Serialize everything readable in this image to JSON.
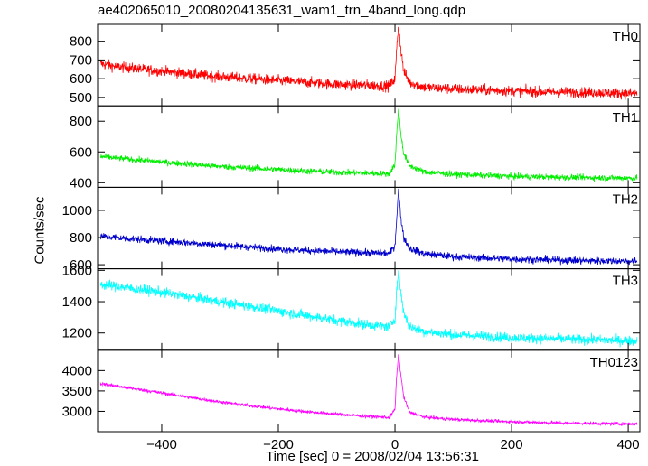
{
  "chart_data": {
    "type": "line",
    "title": "ae402065010_20080204135631_wam1_trn_4band_long.qdp",
    "xlabel": "Time [sec] 0 = 2008/02/04 13:56:31",
    "ylabel": "Counts/sec",
    "xlim": [
      -510,
      420
    ],
    "x_ticks": [
      -400,
      -200,
      0,
      200,
      400
    ],
    "grid": false,
    "panels": [
      {
        "name": "TH0",
        "color": "#ff0000",
        "ylim": [
          455,
          890
        ],
        "y_ticks": [
          500,
          600,
          700,
          800
        ],
        "points": [
          [
            -505,
            680
          ],
          [
            -480,
            665
          ],
          [
            -450,
            655
          ],
          [
            -400,
            640
          ],
          [
            -350,
            625
          ],
          [
            -300,
            610
          ],
          [
            -250,
            600
          ],
          [
            -200,
            590
          ],
          [
            -150,
            580
          ],
          [
            -100,
            570
          ],
          [
            -50,
            565
          ],
          [
            -10,
            560
          ],
          [
            0,
            600
          ],
          [
            3,
            760
          ],
          [
            6,
            890
          ],
          [
            10,
            760
          ],
          [
            15,
            640
          ],
          [
            25,
            580
          ],
          [
            50,
            555
          ],
          [
            100,
            545
          ],
          [
            150,
            540
          ],
          [
            200,
            535
          ],
          [
            250,
            530
          ],
          [
            300,
            528
          ],
          [
            350,
            525
          ],
          [
            415,
            520
          ]
        ],
        "noise": 40
      },
      {
        "name": "TH1",
        "color": "#00ee00",
        "ylim": [
          370,
          900
        ],
        "y_ticks": [
          400,
          600,
          800
        ],
        "points": [
          [
            -505,
            570
          ],
          [
            -450,
            550
          ],
          [
            -400,
            535
          ],
          [
            -350,
            520
          ],
          [
            -300,
            505
          ],
          [
            -250,
            495
          ],
          [
            -200,
            485
          ],
          [
            -150,
            475
          ],
          [
            -100,
            468
          ],
          [
            -50,
            462
          ],
          [
            -10,
            458
          ],
          [
            0,
            520
          ],
          [
            3,
            720
          ],
          [
            6,
            880
          ],
          [
            10,
            720
          ],
          [
            15,
            590
          ],
          [
            25,
            510
          ],
          [
            50,
            470
          ],
          [
            100,
            455
          ],
          [
            150,
            448
          ],
          [
            200,
            442
          ],
          [
            250,
            438
          ],
          [
            300,
            435
          ],
          [
            350,
            432
          ],
          [
            415,
            430
          ]
        ],
        "noise": 28
      },
      {
        "name": "TH2",
        "color": "#0000cc",
        "ylim": [
          570,
          1170
        ],
        "y_ticks": [
          600,
          800,
          1000
        ],
        "points": [
          [
            -505,
            810
          ],
          [
            -450,
            790
          ],
          [
            -400,
            775
          ],
          [
            -350,
            760
          ],
          [
            -300,
            745
          ],
          [
            -250,
            730
          ],
          [
            -200,
            715
          ],
          [
            -150,
            705
          ],
          [
            -100,
            695
          ],
          [
            -50,
            688
          ],
          [
            -10,
            682
          ],
          [
            0,
            740
          ],
          [
            3,
            950
          ],
          [
            6,
            1150
          ],
          [
            10,
            950
          ],
          [
            15,
            800
          ],
          [
            25,
            720
          ],
          [
            50,
            680
          ],
          [
            100,
            660
          ],
          [
            150,
            650
          ],
          [
            200,
            642
          ],
          [
            250,
            637
          ],
          [
            300,
            632
          ],
          [
            350,
            628
          ],
          [
            415,
            625
          ]
        ],
        "noise": 38
      },
      {
        "name": "TH3",
        "color": "#00ffff",
        "ylim": [
          1090,
          1610
        ],
        "y_ticks": [
          1200,
          1400,
          1600
        ],
        "points": [
          [
            -505,
            1510
          ],
          [
            -450,
            1485
          ],
          [
            -400,
            1460
          ],
          [
            -350,
            1430
          ],
          [
            -300,
            1400
          ],
          [
            -250,
            1370
          ],
          [
            -200,
            1340
          ],
          [
            -150,
            1310
          ],
          [
            -100,
            1280
          ],
          [
            -50,
            1255
          ],
          [
            -10,
            1240
          ],
          [
            0,
            1290
          ],
          [
            3,
            1480
          ],
          [
            6,
            1590
          ],
          [
            10,
            1460
          ],
          [
            15,
            1330
          ],
          [
            25,
            1240
          ],
          [
            50,
            1210
          ],
          [
            100,
            1190
          ],
          [
            150,
            1180
          ],
          [
            200,
            1170
          ],
          [
            250,
            1165
          ],
          [
            300,
            1160
          ],
          [
            350,
            1155
          ],
          [
            415,
            1150
          ]
        ],
        "noise": 45
      },
      {
        "name": "TH0123",
        "color": "#ff00ff",
        "ylim": [
          2500,
          4500
        ],
        "y_ticks": [
          3000,
          3500,
          4000
        ],
        "points": [
          [
            -505,
            3680
          ],
          [
            -450,
            3560
          ],
          [
            -400,
            3450
          ],
          [
            -350,
            3340
          ],
          [
            -300,
            3230
          ],
          [
            -250,
            3140
          ],
          [
            -200,
            3060
          ],
          [
            -150,
            2990
          ],
          [
            -100,
            2930
          ],
          [
            -50,
            2880
          ],
          [
            -10,
            2850
          ],
          [
            0,
            3050
          ],
          [
            3,
            3900
          ],
          [
            6,
            4400
          ],
          [
            10,
            3900
          ],
          [
            15,
            3350
          ],
          [
            25,
            2980
          ],
          [
            50,
            2860
          ],
          [
            100,
            2800
          ],
          [
            150,
            2770
          ],
          [
            200,
            2745
          ],
          [
            250,
            2725
          ],
          [
            300,
            2710
          ],
          [
            350,
            2700
          ],
          [
            415,
            2690
          ]
        ],
        "noise": 55
      }
    ]
  }
}
